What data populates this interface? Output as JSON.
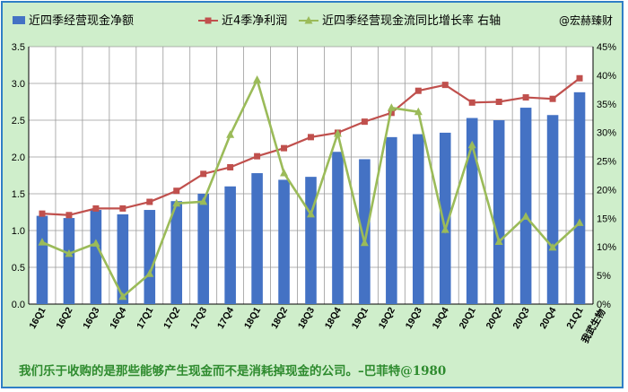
{
  "chart_data": {
    "type": "bar",
    "categories": [
      "16Q1",
      "16Q2",
      "16Q3",
      "16Q4",
      "17Q1",
      "17Q2",
      "17Q3",
      "17Q4",
      "18Q1",
      "18Q2",
      "18Q3",
      "18Q4",
      "19Q1",
      "19Q2",
      "19Q3",
      "19Q4",
      "20Q1",
      "20Q2",
      "20Q3",
      "20Q4",
      "21Q1"
    ],
    "series": [
      {
        "name": "近四季经营现金净额",
        "type": "bar",
        "axis": "left",
        "color": "#4472c4",
        "values": [
          1.2,
          1.17,
          1.28,
          1.22,
          1.28,
          1.4,
          1.5,
          1.6,
          1.78,
          1.69,
          1.73,
          2.07,
          1.97,
          2.27,
          2.31,
          2.33,
          2.53,
          2.5,
          2.67,
          2.57,
          2.88
        ]
      },
      {
        "name": "近4季净利润",
        "type": "line",
        "axis": "left",
        "color": "#c0504d",
        "marker": "square",
        "values": [
          1.23,
          1.21,
          1.3,
          1.3,
          1.39,
          1.54,
          1.77,
          1.86,
          2.01,
          2.12,
          2.27,
          2.33,
          2.48,
          2.6,
          2.9,
          2.98,
          2.74,
          2.75,
          2.81,
          2.79,
          3.07
        ]
      },
      {
        "name": "近四季经营现金流同比增长率 右轴",
        "type": "line",
        "axis": "right",
        "color": "#9bbb59",
        "marker": "triangle",
        "values": [
          10.8,
          8.8,
          10.6,
          1.3,
          5.3,
          17.6,
          17.9,
          29.6,
          39.2,
          22.9,
          15.7,
          29.8,
          10.7,
          34.3,
          33.6,
          13.0,
          27.8,
          10.9,
          15.3,
          9.9,
          14.2
        ]
      }
    ],
    "ylim": [
      0,
      3.5
    ],
    "yticks": [
      "0.0",
      "0.5",
      "1.0",
      "1.5",
      "2.0",
      "2.5",
      "3.0",
      "3.5"
    ],
    "y2lim": [
      0,
      45
    ],
    "y2ticks": [
      "0%",
      "5%",
      "10%",
      "15%",
      "20%",
      "25%",
      "30%",
      "35%",
      "40%",
      "45%"
    ],
    "legend_position": "top",
    "grid": true,
    "watermark": "@宏赫臻财",
    "company": "我武生物",
    "quote": "我们乐于收购的是那些能够产生现金而不是消耗掉现金的公司。–巴菲特@1980"
  }
}
